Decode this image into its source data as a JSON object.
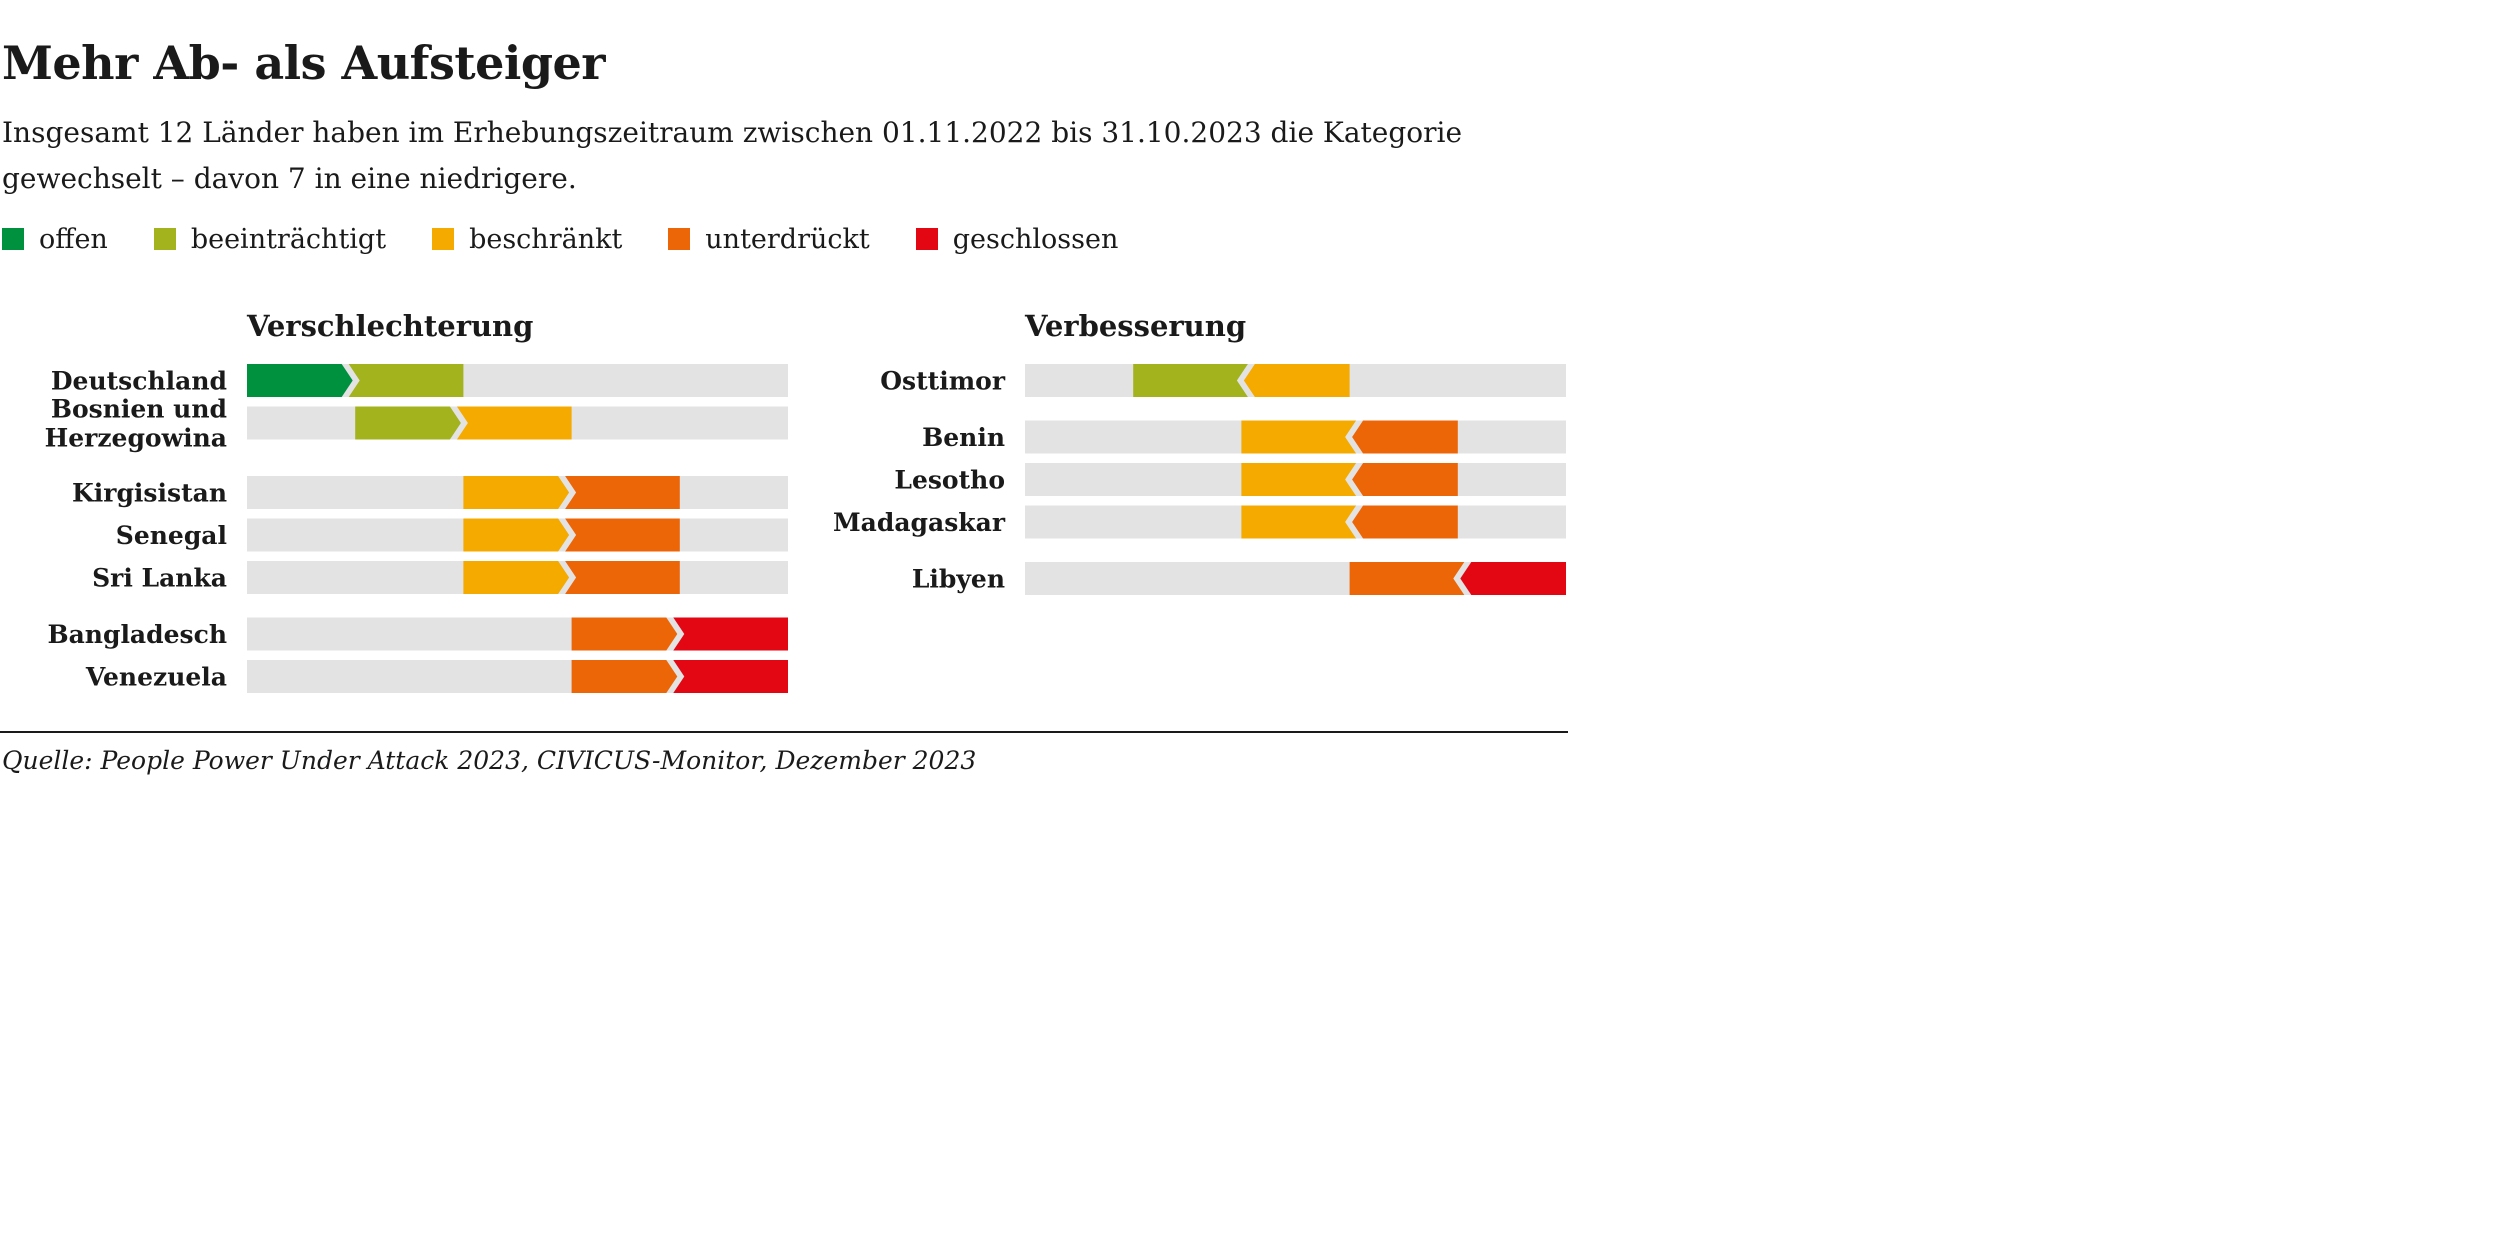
{
  "title": "Mehr Ab- als Aufsteiger",
  "subtitle": "Insgesamt 12 Länder haben im Erhebungszeitraum zwischen 01.11.2022 bis 31.10.2023 die Kategorie gewechselt – davon 7 in eine niedrigere.",
  "legend": [
    {
      "label": "offen",
      "color": "#00913f"
    },
    {
      "label": "beeinträchtigt",
      "color": "#a3b31e"
    },
    {
      "label": "beschränkt",
      "color": "#f5aa00"
    },
    {
      "label": "unterdrückt",
      "color": "#ec6608"
    },
    {
      "label": "geschlossen",
      "color": "#e30613"
    }
  ],
  "source": "Quelle: People Power Under Attack 2023, CIVICUS-Monitor, Dezember 2023",
  "chart_data": {
    "type": "bar",
    "categories": [
      "offen",
      "beeinträchtigt",
      "beschränkt",
      "unterdrückt",
      "geschlossen"
    ],
    "track_color": "#e3e3e3",
    "panels": [
      {
        "title": "Verschlechterung",
        "direction": "right",
        "rows": [
          {
            "label": [
              "Deutschland"
            ],
            "from": "offen",
            "to": "beeinträchtigt",
            "group": 0
          },
          {
            "label": [
              "Bosnien und",
              "Herzegowina"
            ],
            "from": "beeinträchtigt",
            "to": "beschränkt",
            "group": 0
          },
          {
            "label": [
              "Kirgisistan"
            ],
            "from": "beschränkt",
            "to": "unterdrückt",
            "group": 1
          },
          {
            "label": [
              "Senegal"
            ],
            "from": "beschränkt",
            "to": "unterdrückt",
            "group": 1
          },
          {
            "label": [
              "Sri Lanka"
            ],
            "from": "beschränkt",
            "to": "unterdrückt",
            "group": 1
          },
          {
            "label": [
              "Bangladesch"
            ],
            "from": "unterdrückt",
            "to": "geschlossen",
            "group": 2
          },
          {
            "label": [
              "Venezuela"
            ],
            "from": "unterdrückt",
            "to": "geschlossen",
            "group": 2
          }
        ]
      },
      {
        "title": "Verbesserung",
        "direction": "left",
        "rows": [
          {
            "label": [
              "Osttimor"
            ],
            "from": "beschränkt",
            "to": "beeinträchtigt",
            "group": 0
          },
          {
            "label": [
              "Benin"
            ],
            "from": "unterdrückt",
            "to": "beschränkt",
            "group": 1
          },
          {
            "label": [
              "Lesotho"
            ],
            "from": "unterdrückt",
            "to": "beschränkt",
            "group": 1
          },
          {
            "label": [
              "Madagaskar"
            ],
            "from": "unterdrückt",
            "to": "beschränkt",
            "group": 1
          },
          {
            "label": [
              "Libyen"
            ],
            "from": "geschlossen",
            "to": "unterdrückt",
            "group": 2
          }
        ]
      }
    ]
  }
}
